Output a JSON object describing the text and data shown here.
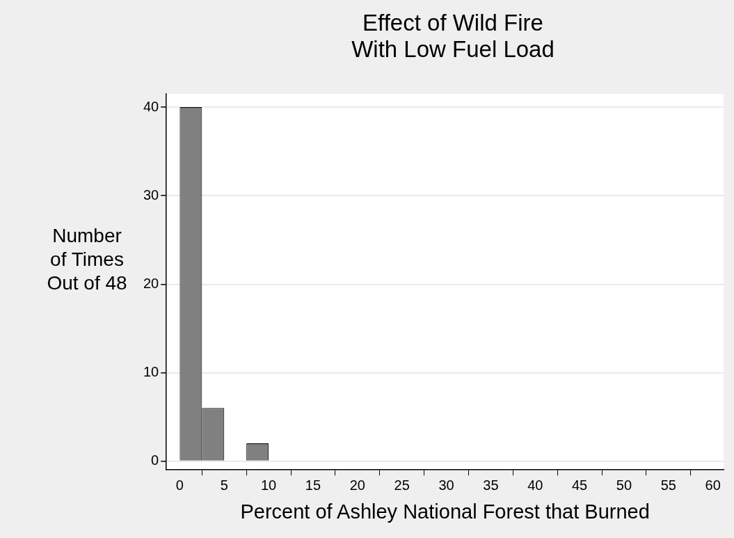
{
  "chart_data": {
    "type": "histogram",
    "title": "Effect of Wild Fire\nWith Low Fuel Load",
    "xlabel": "Percent of Ashley National Forest that Burned",
    "ylabel": "Number of Times Out of 48",
    "bins": [
      0,
      2.5,
      5,
      7.5,
      10
    ],
    "values": [
      40,
      6,
      0,
      2
    ],
    "color": "#808080",
    "xlim": [
      -1.5,
      61.2
    ],
    "xticks": [
      0,
      5,
      10,
      15,
      20,
      25,
      30,
      35,
      40,
      45,
      50,
      55,
      60
    ],
    "ylim": [
      -1,
      41.5
    ],
    "yticks": [
      0,
      10,
      20,
      30,
      40
    ],
    "grid": "y",
    "legend": false
  }
}
